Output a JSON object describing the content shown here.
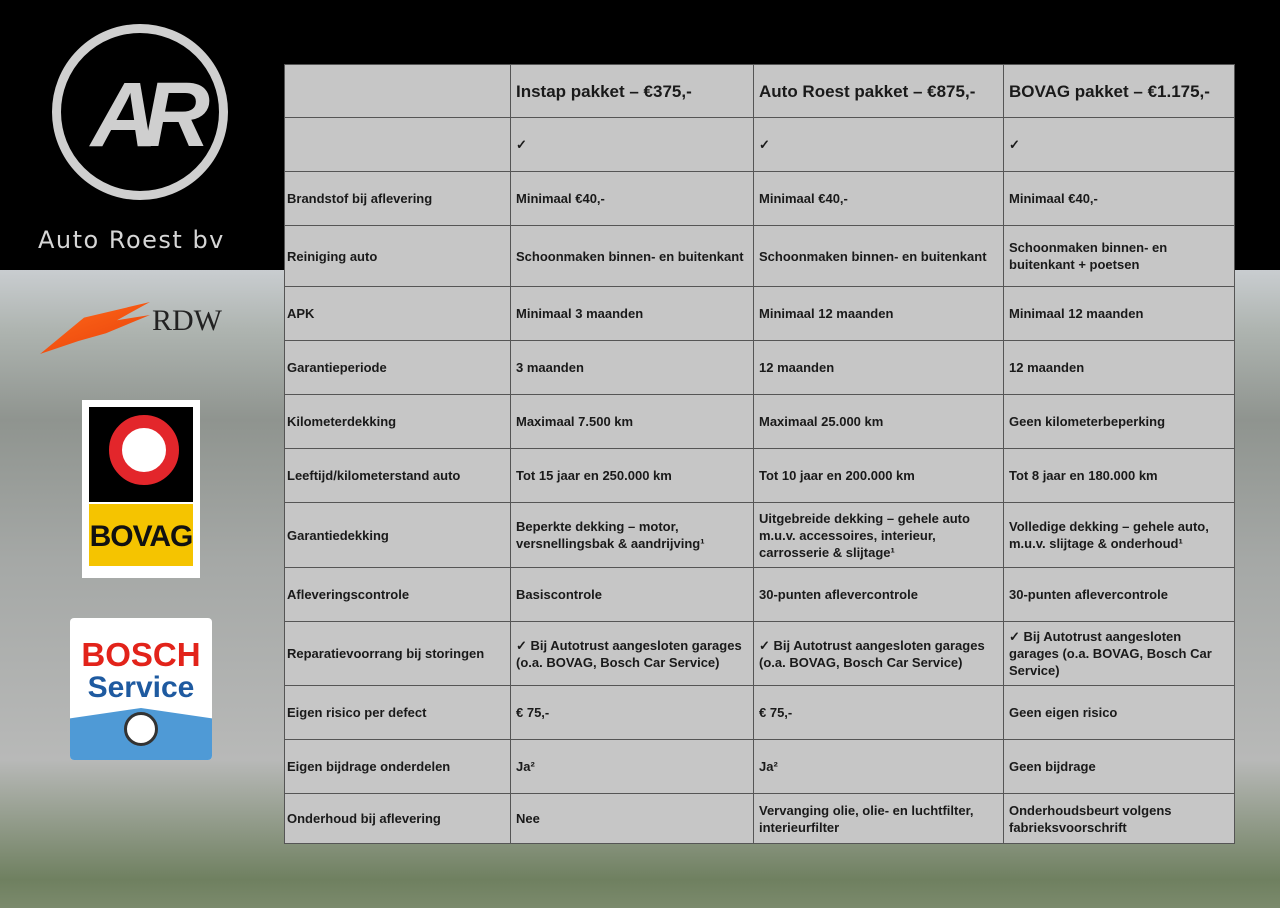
{
  "brand": {
    "logo_text": "AR",
    "name": "Auto Roest bv"
  },
  "logos": {
    "rdw": "RDW",
    "bovag": "BOVAG",
    "bosch_line1": "BOSCH",
    "bosch_line2": "Service"
  },
  "colors": {
    "rdw_orange": "#ff6a1a",
    "bovag_yellow": "#f5c400",
    "bovag_red": "#e3262b",
    "bosch_red": "#e2231a",
    "bosch_blue": "#4f9ad6",
    "table_bg": "#c6c6c6"
  },
  "table": {
    "headers": [
      "",
      "Instap pakket – €375,-",
      "Auto Roest pakket – €875,-",
      "BOVAG pakket – €1.175,-"
    ],
    "rows": [
      [
        "",
        "✓",
        "✓",
        "✓"
      ],
      [
        "Brandstof bij aflevering",
        "Minimaal €40,-",
        "Minimaal €40,-",
        "Minimaal €40,-"
      ],
      [
        "Reiniging auto",
        "Schoonmaken binnen- en buitenkant",
        "Schoonmaken binnen- en buitenkant",
        "Schoonmaken binnen- en buitenkant + poetsen"
      ],
      [
        "APK",
        "Minimaal 3 maanden",
        "Minimaal 12 maanden",
        "Minimaal 12 maanden"
      ],
      [
        "Garantieperiode",
        "3 maanden",
        "12 maanden",
        "12 maanden"
      ],
      [
        "Kilometerdekking",
        "Maximaal 7.500 km",
        "Maximaal 25.000 km",
        "Geen kilometerbeperking"
      ],
      [
        "Leeftijd/kilometerstand auto",
        "Tot 15 jaar en 250.000 km",
        "Tot 10 jaar en 200.000 km",
        "Tot 8 jaar en 180.000 km"
      ],
      [
        "Garantiedekking",
        "Beperkte dekking – motor, versnellingsbak & aandrijving¹",
        "Uitgebreide dekking – gehele auto m.u.v. accessoires, interieur, carrosserie & slijtage¹",
        "Volledige dekking – gehele auto, m.u.v. slijtage & onderhoud¹"
      ],
      [
        "Afleveringscontrole",
        "Basiscontrole",
        "30-punten aflevercontrole",
        "30-punten aflevercontrole"
      ],
      [
        "Reparatievoorrang bij storingen",
        "✓ Bij Autotrust aangesloten garages (o.a. BOVAG, Bosch Car Service)",
        "✓ Bij Autotrust aangesloten garages (o.a. BOVAG, Bosch Car Service)",
        "✓ Bij Autotrust aangesloten garages (o.a. BOVAG, Bosch Car Service)"
      ],
      [
        "Eigen risico per defect",
        "€ 75,-",
        "€ 75,-",
        "Geen eigen risico"
      ],
      [
        "Eigen bijdrage onderdelen",
        "Ja²",
        "Ja²",
        "Geen bijdrage"
      ],
      [
        "Onderhoud bij aflevering",
        "Nee",
        "Vervanging olie, olie- en luchtfilter, interieurfilter",
        "Onderhoudsbeurt volgens fabrieksvoorschrift"
      ]
    ]
  }
}
